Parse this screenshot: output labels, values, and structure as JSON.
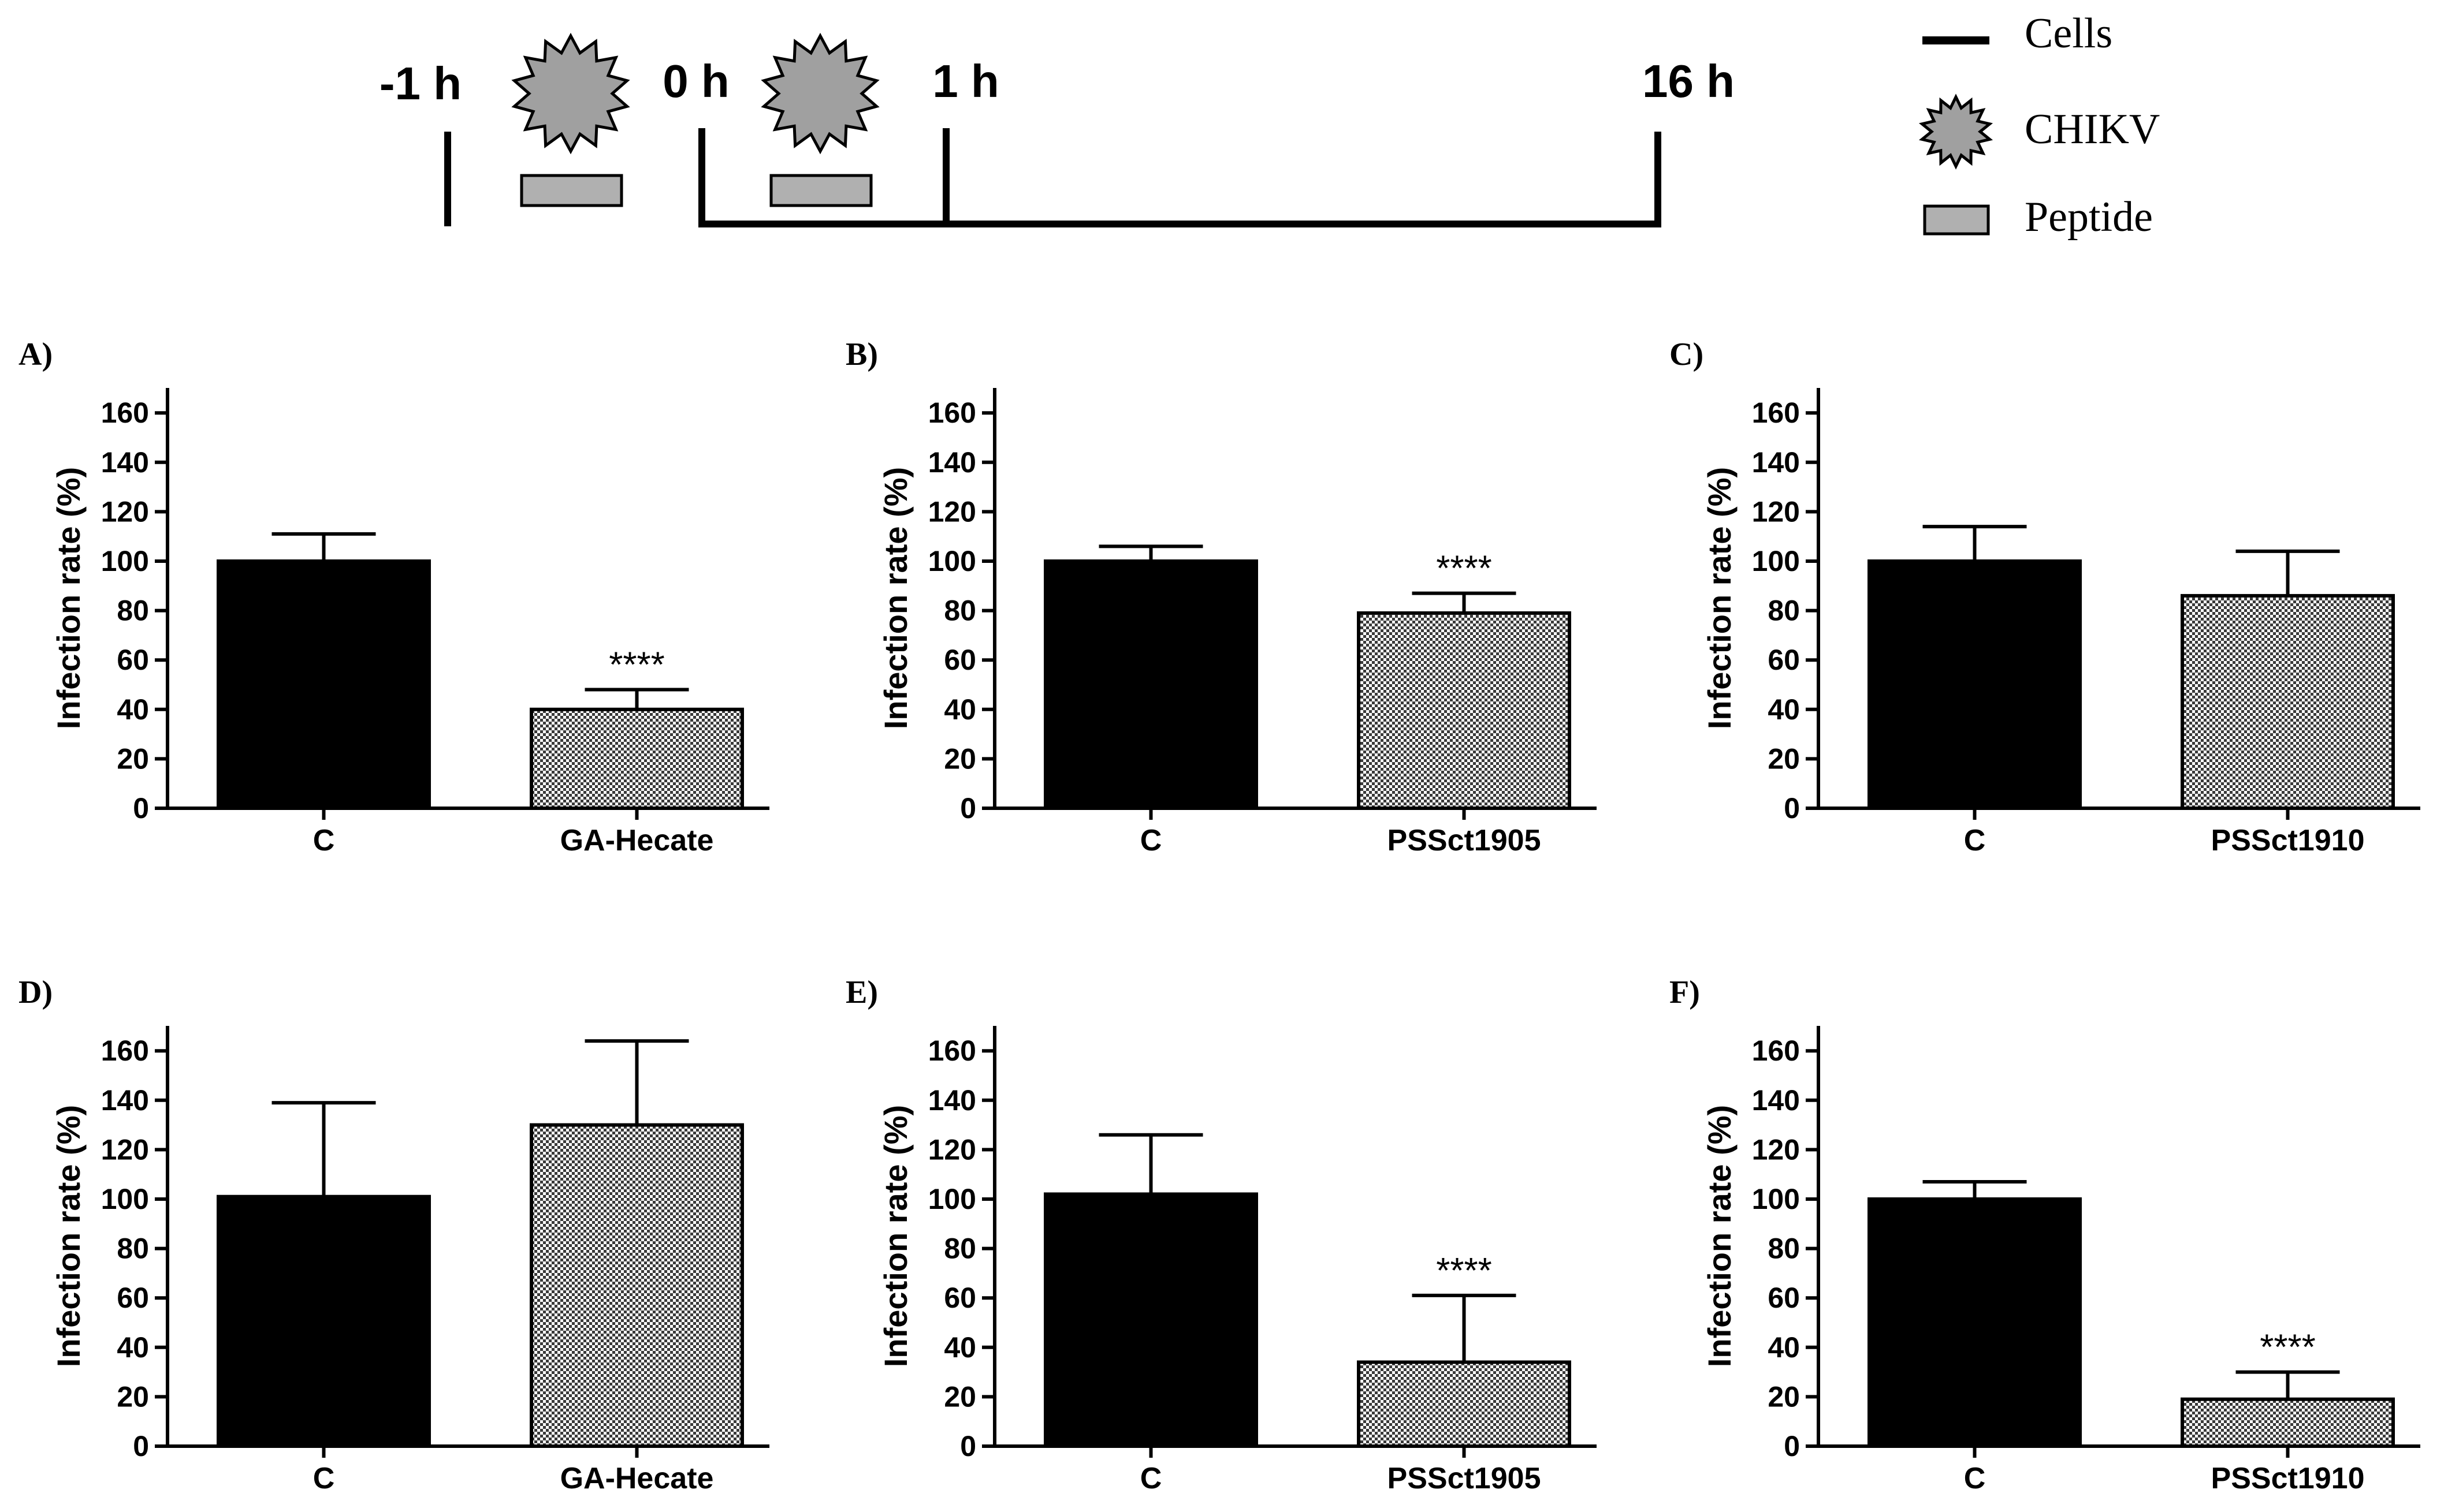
{
  "timeline": {
    "labels": [
      "-1 h",
      "0 h",
      "1 h",
      "16 h"
    ],
    "legend": [
      {
        "symbol": "line-icon",
        "label": "Cells"
      },
      {
        "symbol": "virus-star-icon",
        "label": "CHIKV"
      },
      {
        "symbol": "peptide-rect-icon",
        "label": "Peptide"
      }
    ]
  },
  "colors": {
    "control_bar": "#000000",
    "peptide_fill": "#b0b0b0",
    "virus_fill": "#a0a0a0",
    "axis": "#000000"
  },
  "chart_data": [
    {
      "panel": "A)",
      "type": "bar",
      "categories": [
        "C",
        "GA-Hecate"
      ],
      "values": [
        100,
        40
      ],
      "errors": [
        11,
        8
      ],
      "significance": [
        "",
        "****"
      ],
      "ylabel": "Infection rate (%)",
      "ylim": [
        0,
        170
      ],
      "yticks": [
        0,
        20,
        40,
        60,
        80,
        100,
        120,
        140,
        160
      ]
    },
    {
      "panel": "B)",
      "type": "bar",
      "categories": [
        "C",
        "PSSct1905"
      ],
      "values": [
        100,
        79
      ],
      "errors": [
        6,
        8
      ],
      "significance": [
        "",
        "****"
      ],
      "ylabel": "Infection rate (%)",
      "ylim": [
        0,
        170
      ],
      "yticks": [
        0,
        20,
        40,
        60,
        80,
        100,
        120,
        140,
        160
      ]
    },
    {
      "panel": "C)",
      "type": "bar",
      "categories": [
        "C",
        "PSSct1910"
      ],
      "values": [
        100,
        86
      ],
      "errors": [
        14,
        18
      ],
      "significance": [
        "",
        ""
      ],
      "ylabel": "Infection rate (%)",
      "ylim": [
        0,
        170
      ],
      "yticks": [
        0,
        20,
        40,
        60,
        80,
        100,
        120,
        140,
        160
      ]
    },
    {
      "panel": "D)",
      "type": "bar",
      "categories": [
        "C",
        "GA-Hecate"
      ],
      "values": [
        101,
        130
      ],
      "errors": [
        38,
        34
      ],
      "significance": [
        "",
        ""
      ],
      "ylabel": "Infection rate (%)",
      "ylim": [
        0,
        170
      ],
      "yticks": [
        0,
        20,
        40,
        60,
        80,
        100,
        120,
        140,
        160
      ]
    },
    {
      "panel": "E)",
      "type": "bar",
      "categories": [
        "C",
        "PSSct1905"
      ],
      "values": [
        102,
        34
      ],
      "errors": [
        24,
        27
      ],
      "significance": [
        "",
        "****"
      ],
      "ylabel": "Infection rate (%)",
      "ylim": [
        0,
        170
      ],
      "yticks": [
        0,
        20,
        40,
        60,
        80,
        100,
        120,
        140,
        160
      ]
    },
    {
      "panel": "F)",
      "type": "bar",
      "categories": [
        "C",
        "PSSct1910"
      ],
      "values": [
        100,
        19
      ],
      "errors": [
        7,
        11
      ],
      "significance": [
        "",
        "****"
      ],
      "ylabel": "Infection rate (%)",
      "ylim": [
        0,
        170
      ],
      "yticks": [
        0,
        20,
        40,
        60,
        80,
        100,
        120,
        140,
        160
      ]
    }
  ]
}
